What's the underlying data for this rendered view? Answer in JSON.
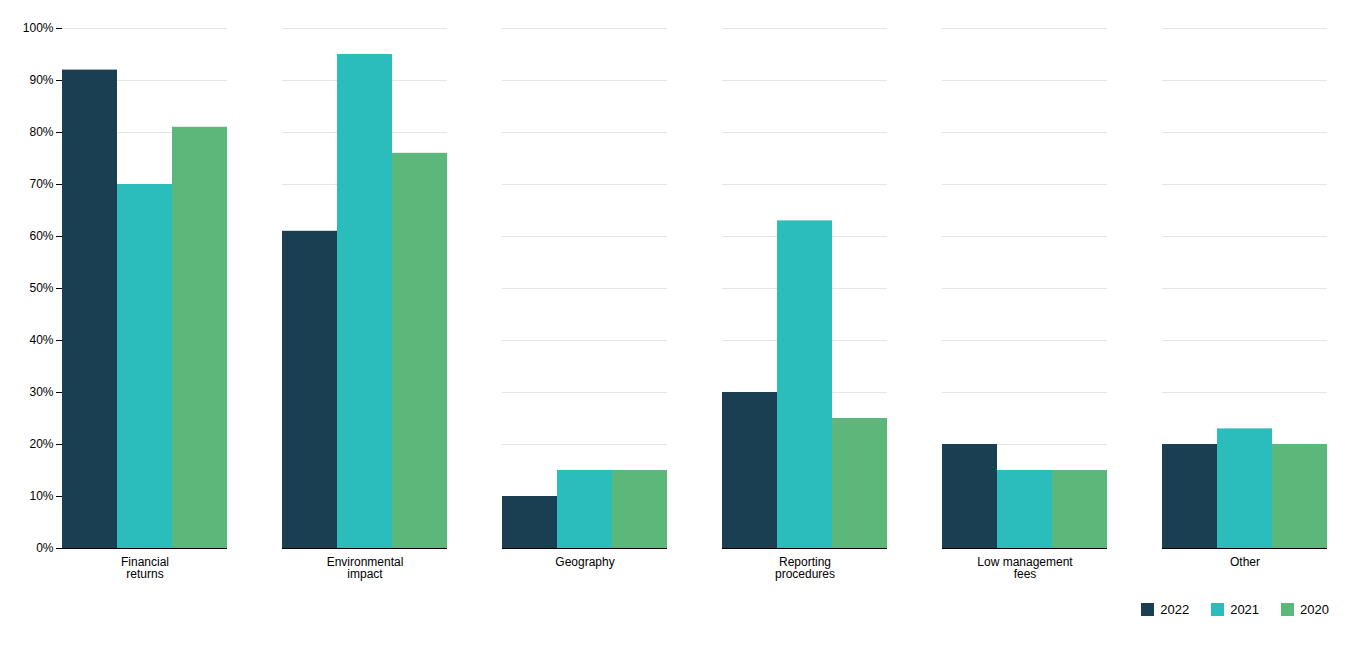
{
  "chart_data": {
    "type": "bar",
    "categories": [
      "Financial\nreturns",
      "Environmental\nimpact",
      "Geography",
      "Reporting\nprocedures",
      "Low management\nfees",
      "Other"
    ],
    "series": [
      {
        "name": "2022",
        "color": "#1b3f52",
        "values": [
          92,
          61,
          10,
          30,
          20,
          20
        ]
      },
      {
        "name": "2021",
        "color": "#2bbcbc",
        "values": [
          70,
          95,
          15,
          63,
          15,
          23
        ]
      },
      {
        "name": "2020",
        "color": "#5cb87a",
        "values": [
          81,
          76,
          15,
          25,
          15,
          20
        ]
      }
    ],
    "ylim": [
      0,
      100
    ],
    "yticks": [
      {
        "value": 0,
        "label": "0%"
      },
      {
        "value": 10,
        "label": "10%"
      },
      {
        "value": 20,
        "label": "20%"
      },
      {
        "value": 30,
        "label": "30%"
      },
      {
        "value": 40,
        "label": "40%"
      },
      {
        "value": 50,
        "label": "50%"
      },
      {
        "value": 60,
        "label": "60%"
      },
      {
        "value": 70,
        "label": "70%"
      },
      {
        "value": 80,
        "label": "80%"
      },
      {
        "value": 90,
        "label": "90%"
      },
      {
        "value": 100,
        "label": "100%"
      }
    ],
    "grid": true,
    "legend": "lower right"
  }
}
